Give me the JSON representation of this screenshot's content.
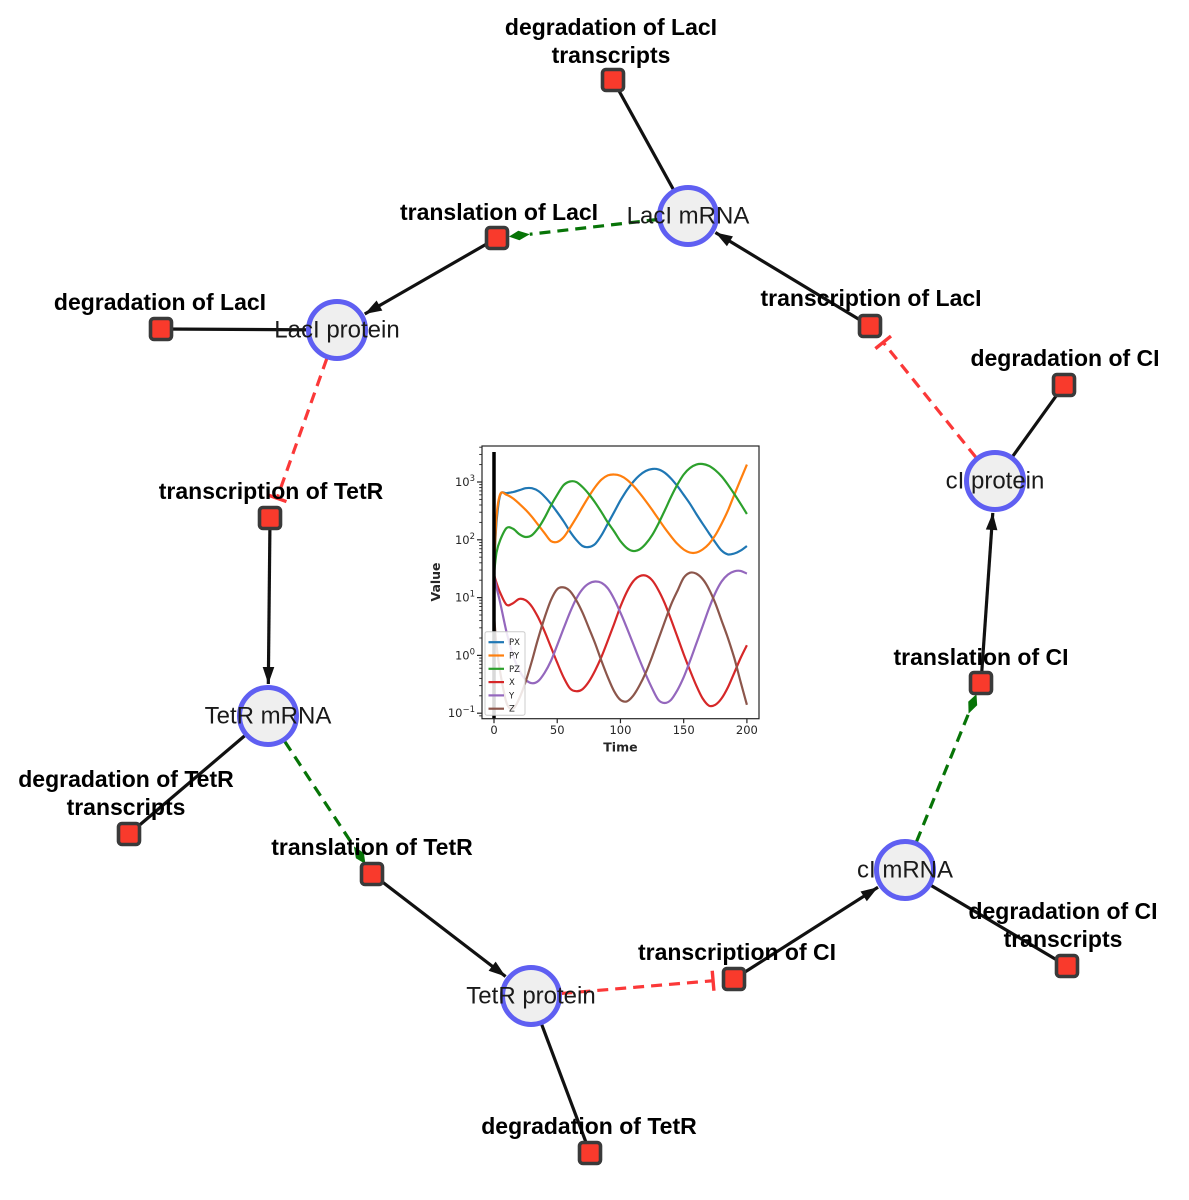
{
  "figure": {
    "background": "#ffffff",
    "species": [
      {
        "id": "laci_mrna",
        "label": "LacI mRNA"
      },
      {
        "id": "laci_protein",
        "label": "LacI protein"
      },
      {
        "id": "tetr_mrna",
        "label": "TetR mRNA"
      },
      {
        "id": "tetr_protein",
        "label": "TetR protein"
      },
      {
        "id": "ci_mrna",
        "label": "cI mRNA"
      },
      {
        "id": "ci_protein",
        "label": "cI protein"
      }
    ],
    "reactions": [
      {
        "id": "deg_laci_tx",
        "label_lines": [
          "degradation of LacI",
          "transcripts"
        ]
      },
      {
        "id": "translation_laci",
        "label_lines": [
          "translation of LacI"
        ]
      },
      {
        "id": "transcription_laci",
        "label_lines": [
          "transcription of LacI"
        ]
      },
      {
        "id": "deg_laci",
        "label_lines": [
          "degradation of LacI"
        ]
      },
      {
        "id": "transcription_tetr",
        "label_lines": [
          "transcription of TetR"
        ]
      },
      {
        "id": "deg_tetr_tx",
        "label_lines": [
          "degradation of TetR",
          "transcripts"
        ]
      },
      {
        "id": "translation_tetr",
        "label_lines": [
          "translation of TetR"
        ]
      },
      {
        "id": "deg_tetr",
        "label_lines": [
          "degradation of TetR"
        ]
      },
      {
        "id": "transcription_ci",
        "label_lines": [
          "transcription of CI"
        ]
      },
      {
        "id": "deg_ci_tx",
        "label_lines": [
          "degradation of CI",
          "transcripts"
        ]
      },
      {
        "id": "translation_ci",
        "label_lines": [
          "translation of CI"
        ]
      },
      {
        "id": "deg_ci",
        "label_lines": [
          "degradation of CI"
        ]
      }
    ],
    "edges": [
      {
        "from": "laci_mrna",
        "to": "deg_laci_tx",
        "type": "consumption"
      },
      {
        "from": "transcription_laci",
        "to": "laci_mrna",
        "type": "production"
      },
      {
        "from": "laci_mrna",
        "to": "translation_laci",
        "type": "modifier"
      },
      {
        "from": "translation_laci",
        "to": "laci_protein",
        "type": "production"
      },
      {
        "from": "laci_protein",
        "to": "deg_laci",
        "type": "consumption"
      },
      {
        "from": "laci_protein",
        "to": "transcription_tetr",
        "type": "inhibition"
      },
      {
        "from": "transcription_tetr",
        "to": "tetr_mrna",
        "type": "production"
      },
      {
        "from": "tetr_mrna",
        "to": "deg_tetr_tx",
        "type": "consumption"
      },
      {
        "from": "tetr_mrna",
        "to": "translation_tetr",
        "type": "modifier"
      },
      {
        "from": "translation_tetr",
        "to": "tetr_protein",
        "type": "production"
      },
      {
        "from": "tetr_protein",
        "to": "deg_tetr",
        "type": "consumption"
      },
      {
        "from": "tetr_protein",
        "to": "transcription_ci",
        "type": "inhibition"
      },
      {
        "from": "transcription_ci",
        "to": "ci_mrna",
        "type": "production"
      },
      {
        "from": "ci_mrna",
        "to": "deg_ci_tx",
        "type": "consumption"
      },
      {
        "from": "ci_mrna",
        "to": "translation_ci",
        "type": "modifier"
      },
      {
        "from": "translation_ci",
        "to": "ci_protein",
        "type": "production"
      },
      {
        "from": "ci_protein",
        "to": "deg_ci",
        "type": "consumption"
      },
      {
        "from": "ci_protein",
        "to": "transcription_laci",
        "type": "inhibition"
      }
    ],
    "colors": {
      "species_fill": "#efefef",
      "species_border": "#5f5ff2",
      "reaction_fill": "#f93a2c",
      "reaction_border": "#3a3a3a",
      "edge_black": "#111111",
      "edge_modifier_green": "#077407",
      "edge_inhibition_red": "#fb3838",
      "reaction_label_color": "#000000",
      "species_label_color": "#1a1a1a"
    }
  },
  "chart_data": {
    "type": "line",
    "title": "",
    "xlabel": "Time",
    "ylabel": "Value",
    "y_scale": "log",
    "xlim": [
      -19,
      209
    ],
    "ylim": [
      0.086,
      4200
    ],
    "x_ticks": [
      0,
      50,
      100,
      150,
      200
    ],
    "y_tick_base": "10",
    "y_tick_exponents": [
      "−1",
      "0",
      "1",
      "2",
      "3"
    ],
    "y_ticks": [
      "10^-1",
      "10^0",
      "10^1",
      "10^2",
      "10^3"
    ],
    "legend_position": "lower left",
    "grid": false,
    "initial_marker": "black vertical line at t=0",
    "x": [
      0,
      2,
      5,
      10,
      15,
      20,
      25,
      30,
      35,
      40,
      45,
      50,
      55,
      60,
      65,
      70,
      75,
      80,
      85,
      90,
      95,
      100,
      105,
      110,
      115,
      120,
      125,
      130,
      135,
      140,
      145,
      150,
      155,
      160,
      165,
      170,
      175,
      180,
      185,
      190,
      195,
      200
    ],
    "series": [
      {
        "name": "PX",
        "color": "#1f77b4",
        "values": [
          30,
          200,
          600,
          640,
          670,
          720,
          780,
          780,
          700,
          560,
          420,
          300,
          210,
          140,
          100,
          78,
          75,
          85,
          120,
          190,
          300,
          480,
          720,
          1000,
          1300,
          1550,
          1680,
          1650,
          1450,
          1150,
          850,
          600,
          420,
          280,
          190,
          130,
          90,
          65,
          56,
          58,
          65,
          78
        ]
      },
      {
        "name": "PY",
        "color": "#ff7f0e",
        "values": [
          30,
          250,
          620,
          600,
          520,
          420,
          330,
          250,
          180,
          130,
          95,
          92,
          110,
          160,
          240,
          370,
          560,
          820,
          1100,
          1300,
          1350,
          1280,
          1100,
          870,
          650,
          470,
          330,
          230,
          160,
          115,
          85,
          68,
          60,
          60,
          68,
          85,
          120,
          190,
          320,
          600,
          1100,
          2000
        ]
      },
      {
        "name": "PZ",
        "color": "#2ca02c",
        "values": [
          25,
          60,
          100,
          160,
          155,
          125,
          112,
          120,
          160,
          240,
          390,
          600,
          880,
          1020,
          1000,
          820,
          620,
          440,
          300,
          200,
          140,
          95,
          72,
          64,
          68,
          85,
          120,
          190,
          320,
          550,
          900,
          1350,
          1750,
          2000,
          2050,
          1900,
          1600,
          1250,
          900,
          620,
          420,
          280
        ]
      },
      {
        "name": "X",
        "color": "#d62728",
        "values": [
          25,
          18,
          12,
          7.5,
          8,
          9.5,
          9,
          7,
          4.5,
          2.6,
          1.4,
          0.75,
          0.42,
          0.27,
          0.24,
          0.26,
          0.35,
          0.55,
          0.95,
          1.8,
          3.5,
          7,
          12.5,
          19,
          23.5,
          24,
          20,
          13.5,
          8,
          4.2,
          2.1,
          1.05,
          0.55,
          0.3,
          0.18,
          0.135,
          0.14,
          0.18,
          0.28,
          0.5,
          0.9,
          1.5
        ]
      },
      {
        "name": "Y",
        "color": "#9467bd",
        "values": [
          25,
          15,
          8,
          2.5,
          1.0,
          0.55,
          0.38,
          0.33,
          0.36,
          0.5,
          0.8,
          1.5,
          2.9,
          5.5,
          9.5,
          14,
          17.5,
          19,
          18,
          14.5,
          9.5,
          5.5,
          3.0,
          1.6,
          0.85,
          0.47,
          0.27,
          0.17,
          0.15,
          0.17,
          0.25,
          0.42,
          0.8,
          1.6,
          3.2,
          6.5,
          12,
          19,
          25,
          28.5,
          29,
          26
        ]
      },
      {
        "name": "Z",
        "color": "#8c564b",
        "values": [
          5,
          1.5,
          0.5,
          0.15,
          0.12,
          0.18,
          0.35,
          0.8,
          2.0,
          4.5,
          9,
          14,
          15,
          13,
          9,
          5.5,
          3.0,
          1.6,
          0.8,
          0.42,
          0.24,
          0.17,
          0.16,
          0.2,
          0.3,
          0.5,
          0.95,
          1.9,
          3.8,
          7.5,
          13,
          22,
          27,
          26,
          21,
          14,
          8,
          4,
          2,
          0.9,
          0.35,
          0.14
        ]
      }
    ]
  }
}
